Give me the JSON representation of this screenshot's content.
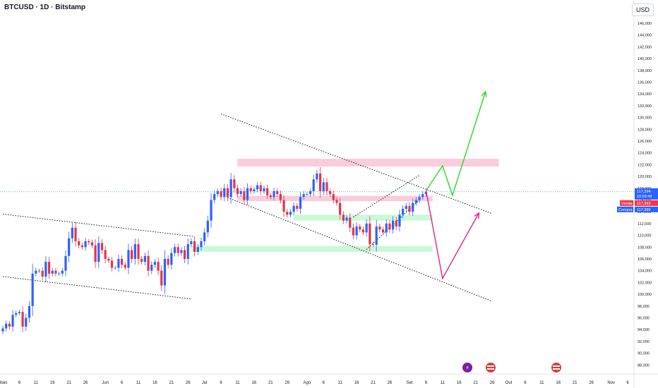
{
  "header": {
    "title": "BTCUSD · 1D · Bitstamp",
    "currency": "USD"
  },
  "colors": {
    "up": "#2962ff",
    "down": "#e5334a",
    "resistance": "#f8bbd0",
    "support": "#b9f6ca",
    "bull_path": "#22dd22",
    "bear_path": "#e91e8c",
    "price_line": "#2962ff"
  },
  "chart_data": {
    "type": "candlestick",
    "title": "BTCUSD · 1D · Bitstamp",
    "y_axis": {
      "range": [
        86000,
        148000
      ],
      "ticks": [
        "146,000",
        "144,000",
        "142,000",
        "140,000",
        "138,000",
        "136,000",
        "134,000",
        "132,000",
        "130,000",
        "128,000",
        "126,000",
        "124,000",
        "122,000",
        "120,000",
        "118,000",
        "116,000",
        "114,000",
        "112,000",
        "110,000",
        "108,000",
        "106,000",
        "104,000",
        "102,000",
        "100,000",
        "98,000",
        "96,000",
        "94,000",
        "92,000",
        "90,000",
        "88,000"
      ]
    },
    "x_axis": {
      "ticks": [
        {
          "label": "Maio",
          "day": 0
        },
        {
          "label": "6",
          "day": 5
        },
        {
          "label": "11",
          "day": 10
        },
        {
          "label": "16",
          "day": 15
        },
        {
          "label": "21",
          "day": 20
        },
        {
          "label": "26",
          "day": 25
        },
        {
          "label": "Jun",
          "day": 31
        },
        {
          "label": "6",
          "day": 36
        },
        {
          "label": "11",
          "day": 41
        },
        {
          "label": "16",
          "day": 46
        },
        {
          "label": "21",
          "day": 51
        },
        {
          "label": "26",
          "day": 56
        },
        {
          "label": "Jul",
          "day": 61
        },
        {
          "label": "6",
          "day": 66
        },
        {
          "label": "11",
          "day": 71
        },
        {
          "label": "16",
          "day": 76
        },
        {
          "label": "21",
          "day": 81
        },
        {
          "label": "26",
          "day": 86
        },
        {
          "label": "Ago",
          "day": 92
        },
        {
          "label": "6",
          "day": 97
        },
        {
          "label": "11",
          "day": 102
        },
        {
          "label": "16",
          "day": 107
        },
        {
          "label": "21",
          "day": 112
        },
        {
          "label": "26",
          "day": 117
        },
        {
          "label": "Set",
          "day": 123
        },
        {
          "label": "6",
          "day": 128
        },
        {
          "label": "11",
          "day": 133
        },
        {
          "label": "16",
          "day": 138
        },
        {
          "label": "21",
          "day": 143
        },
        {
          "label": "26",
          "day": 148
        },
        {
          "label": "Out",
          "day": 153
        },
        {
          "label": "6",
          "day": 158
        },
        {
          "label": "11",
          "day": 163
        },
        {
          "label": "16",
          "day": 168
        },
        {
          "label": "21",
          "day": 173
        },
        {
          "label": "26",
          "day": 178
        },
        {
          "label": "Nov",
          "day": 184
        },
        {
          "label": "6",
          "day": 189
        }
      ]
    },
    "closes": [
      94200,
      95000,
      94500,
      96500,
      96800,
      97000,
      94500,
      96000,
      98000,
      103500,
      104000,
      104000,
      103000,
      105500,
      103500,
      104000,
      103500,
      103500,
      104000,
      106500,
      109500,
      111300,
      109000,
      108300,
      108000,
      109000,
      108800,
      108300,
      105500,
      108700,
      107500,
      106000,
      105700,
      104500,
      104500,
      106000,
      105000,
      104500,
      107500,
      106000,
      108500,
      106000,
      105500,
      106500,
      104000,
      105000,
      105500,
      104000,
      101500,
      106000,
      105000,
      107000,
      108000,
      107000,
      107500,
      106000,
      108500,
      109000,
      107200,
      108000,
      109000,
      110500,
      112500,
      116000,
      117000,
      117500,
      116500,
      118000,
      116500,
      119500,
      118000,
      117000,
      117500,
      116000,
      118000,
      117500,
      117800,
      118500,
      117500,
      118000,
      116800,
      116500,
      117500,
      117000,
      116000,
      114000,
      113500,
      114000,
      115000,
      114500,
      116500,
      117000,
      117000,
      117500,
      119500,
      120500,
      117500,
      119000,
      117500,
      117000,
      116000,
      115500,
      113500,
      112500,
      113000,
      111300,
      110000,
      111500,
      111000,
      110500,
      112000,
      108500,
      108400,
      111500,
      111000,
      110500,
      112000,
      111000,
      112500,
      111500,
      113500,
      114500,
      115000,
      114000,
      115500,
      116000,
      116500,
      117000,
      117394
    ],
    "current_price": {
      "label": "117,394",
      "value": 117394,
      "countdown": "10:02:48"
    },
    "sell_tag": {
      "label": "Venda",
      "value": "117,393"
    },
    "buy_tag": {
      "label": "Compra",
      "value": "117,389"
    },
    "zones": [
      {
        "type": "resistance",
        "from_day": 71,
        "to_day": 150,
        "low": 121700,
        "high": 123000
      },
      {
        "type": "resistance",
        "from_day": 71,
        "to_day": 130,
        "low": 115800,
        "high": 116700
      },
      {
        "type": "support",
        "from_day": 88,
        "to_day": 130,
        "low": 112500,
        "high": 113500
      },
      {
        "type": "support",
        "from_day": 57,
        "to_day": 130,
        "low": 107200,
        "high": 108200
      }
    ],
    "trendlines": [
      {
        "from": [
          0,
          113600
        ],
        "to": [
          58,
          109800
        ]
      },
      {
        "from": [
          0,
          103000
        ],
        "to": [
          57,
          99200
        ]
      },
      {
        "from": [
          66,
          130600
        ],
        "to": [
          148,
          113700
        ]
      },
      {
        "from": [
          68,
          116400
        ],
        "to": [
          148,
          98800
        ]
      },
      {
        "from": [
          106,
          113100
        ],
        "to": [
          126,
          120200
        ]
      },
      {
        "from": [
          110,
          107600
        ],
        "to": [
          126,
          116000
        ]
      }
    ],
    "projections": [
      {
        "name": "bull",
        "points": [
          [
            128,
            117600
          ],
          [
            133,
            121800
          ],
          [
            136,
            116800
          ],
          [
            146,
            134400
          ]
        ]
      },
      {
        "name": "bear",
        "points": [
          [
            128,
            117600
          ],
          [
            133,
            102700
          ],
          [
            144,
            113800
          ]
        ]
      }
    ]
  }
}
